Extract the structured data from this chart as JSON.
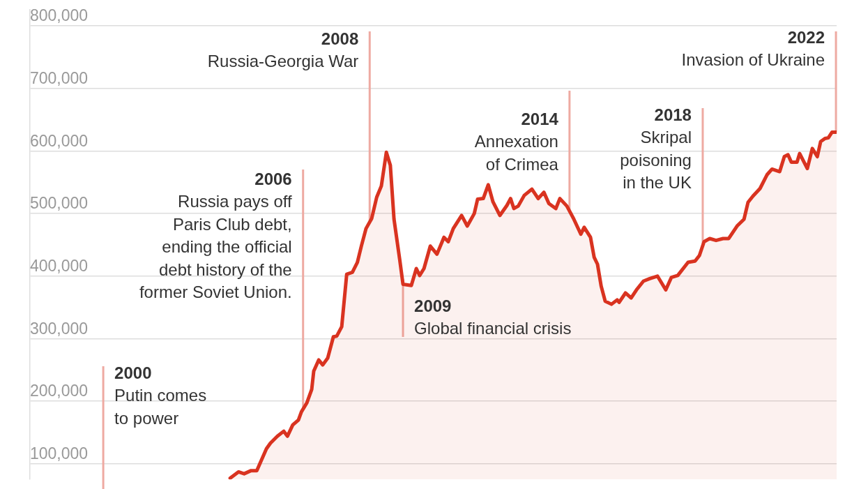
{
  "chart_data": {
    "type": "area",
    "xlim": [
      1997.8,
      2022.02
    ],
    "ylim": [
      75000,
      826000
    ],
    "yticks": [
      {
        "value": 100000,
        "label": "100,000"
      },
      {
        "value": 200000,
        "label": "200,000"
      },
      {
        "value": 300000,
        "label": "300,000"
      },
      {
        "value": 400000,
        "label": "400,000"
      },
      {
        "value": 500000,
        "label": "500,000"
      },
      {
        "value": 600000,
        "label": "600,000"
      },
      {
        "value": 700000,
        "label": "700,000"
      },
      {
        "value": 800000,
        "label": "800,000"
      }
    ],
    "tick_labels": "y",
    "grid": "y",
    "legend": false,
    "series": [
      {
        "color": "#d93320",
        "x": [
          2003.81,
          2004.06,
          2004.23,
          2004.44,
          2004.61,
          2004.9,
          2005.02,
          2005.23,
          2005.42,
          2005.53,
          2005.69,
          2005.86,
          2005.95,
          2006.11,
          2006.26,
          2006.32,
          2006.47,
          2006.59,
          2006.74,
          2006.91,
          2007.01,
          2007.16,
          2007.31,
          2007.48,
          2007.63,
          2007.75,
          2007.89,
          2008.06,
          2008.21,
          2008.35,
          2008.5,
          2008.62,
          2008.73,
          2008.9,
          2009.0,
          2009.25,
          2009.4,
          2009.5,
          2009.63,
          2009.82,
          2010.02,
          2010.23,
          2010.36,
          2010.51,
          2010.76,
          2010.93,
          2011.14,
          2011.24,
          2011.41,
          2011.56,
          2011.7,
          2011.91,
          2012.12,
          2012.23,
          2012.33,
          2012.46,
          2012.64,
          2012.87,
          2013.06,
          2013.23,
          2013.38,
          2013.59,
          2013.71,
          2013.92,
          2014.13,
          2014.34,
          2014.44,
          2014.63,
          2014.74,
          2014.84,
          2014.95,
          2015.07,
          2015.26,
          2015.43,
          2015.49,
          2015.68,
          2015.85,
          2016.01,
          2016.22,
          2016.41,
          2016.64,
          2016.89,
          2017.06,
          2017.25,
          2017.56,
          2017.77,
          2017.9,
          2018.04,
          2018.21,
          2018.4,
          2018.61,
          2018.78,
          2019.03,
          2019.24,
          2019.36,
          2019.51,
          2019.72,
          2019.93,
          2020.08,
          2020.31,
          2020.45,
          2020.56,
          2020.66,
          2020.83,
          2020.91,
          2021.14,
          2021.29,
          2021.44,
          2021.54,
          2021.67,
          2021.77,
          2021.88,
          2022.02
        ],
        "values": [
          77000,
          87000,
          84000,
          89000,
          89000,
          124000,
          133000,
          144000,
          152000,
          144000,
          162000,
          170000,
          183000,
          197000,
          219000,
          248000,
          266000,
          258000,
          269000,
          303000,
          304000,
          319000,
          403000,
          406000,
          422000,
          448000,
          476000,
          492000,
          526000,
          544000,
          598000,
          577000,
          491000,
          427000,
          387000,
          385000,
          412000,
          401000,
          412000,
          448000,
          435000,
          462000,
          455000,
          476000,
          497000,
          480000,
          500000,
          523000,
          524000,
          546000,
          519000,
          497000,
          513000,
          524000,
          508000,
          512000,
          529000,
          539000,
          524000,
          534000,
          516000,
          508000,
          524000,
          512000,
          491000,
          467000,
          478000,
          462000,
          430000,
          419000,
          384000,
          360000,
          355000,
          362000,
          358000,
          373000,
          365000,
          378000,
          392000,
          396000,
          400000,
          378000,
          398000,
          401000,
          422000,
          424000,
          433000,
          455000,
          460000,
          457000,
          460000,
          460000,
          480000,
          491000,
          518000,
          528000,
          540000,
          562000,
          571000,
          567000,
          591000,
          594000,
          582000,
          582000,
          596000,
          572000,
          604000,
          591000,
          615000,
          620000,
          621000,
          630000,
          630000
        ]
      }
    ],
    "ref_lines": [
      {
        "axis": "x",
        "value": 2000,
        "label": "2000\nPutin comes\nto power",
        "color": "#eeaaa2"
      },
      {
        "axis": "x",
        "value": 2006,
        "label": "2006\nRussia pays off\nParis Club debt,\nending the official\ndebt history of the\nformer Soviet Union.",
        "color": "#eeaaa2"
      },
      {
        "axis": "x",
        "value": 2008,
        "label": "2008\nRussia-Georgia War",
        "color": "#eeaaa2"
      },
      {
        "axis": "x",
        "value": 2009,
        "label": "2009\nGlobal financial crisis",
        "color": "#eeaaa2"
      },
      {
        "axis": "x",
        "value": 2014,
        "label": "2014\nAnnexation\nof Crimea",
        "color": "#eeaaa2"
      },
      {
        "axis": "x",
        "value": 2018,
        "label": "2018\nSkripal\npoisoning\nin the UK",
        "color": "#eeaaa2"
      },
      {
        "axis": "x",
        "value": 2022,
        "label": "2022\nInvasion of Ukraine",
        "color": "#eeaaa2"
      }
    ]
  }
}
